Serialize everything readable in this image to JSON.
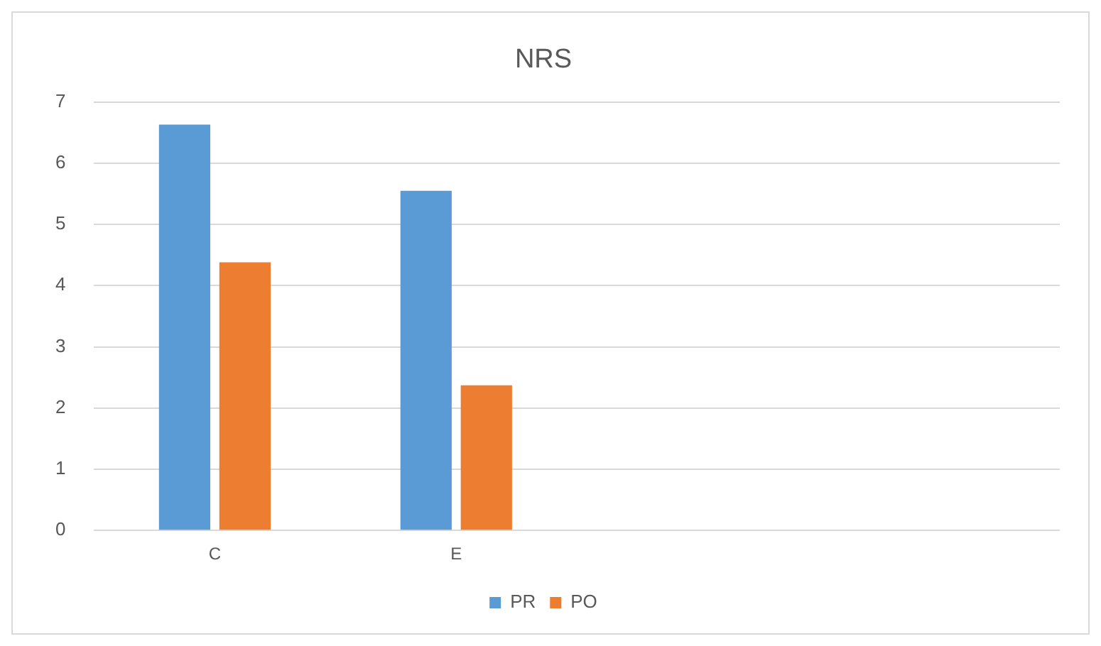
{
  "chart_data": {
    "type": "bar",
    "title": "NRS",
    "categories": [
      "C",
      "E",
      null,
      null
    ],
    "series": [
      {
        "name": "PR",
        "color": "#5b9bd5",
        "values": [
          6.63,
          5.55,
          null,
          null
        ]
      },
      {
        "name": "PO",
        "color": "#ed7d31",
        "values": [
          4.38,
          2.37,
          null,
          null
        ]
      }
    ],
    "ylim": [
      0,
      7
    ],
    "yticks": [
      0,
      1,
      2,
      3,
      4,
      5,
      6,
      7
    ],
    "grid": "y",
    "legend": "bottom"
  }
}
